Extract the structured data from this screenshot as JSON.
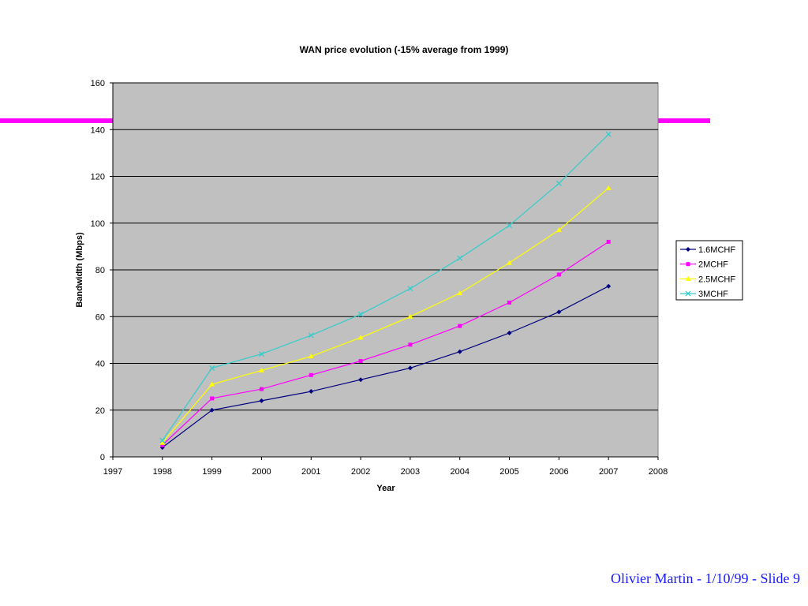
{
  "slide": {
    "footer": "Olivier Martin - 1/10/99 - Slide 9",
    "rule_color": "#ff00ff"
  },
  "chart_data": {
    "type": "line",
    "title": "WAN price evolution (-15% average from 1999)",
    "xlabel": "Year",
    "ylabel": "Bandwidth (Mbps)",
    "xlim": [
      1997,
      2008
    ],
    "ylim": [
      0,
      160
    ],
    "x_ticks": [
      1997,
      1998,
      1999,
      2000,
      2001,
      2002,
      2003,
      2004,
      2005,
      2006,
      2007,
      2008
    ],
    "y_ticks": [
      0,
      20,
      40,
      60,
      80,
      100,
      120,
      140,
      160
    ],
    "grid": "horizontal",
    "plot_background": "#c0c0c0",
    "legend_position": "right",
    "x": [
      1998,
      1999,
      2000,
      2001,
      2002,
      2003,
      2004,
      2005,
      2006,
      2007
    ],
    "series": [
      {
        "name": "1.6MCHF",
        "color": "#000080",
        "marker": "diamond",
        "values": [
          4,
          20,
          24,
          28,
          33,
          38,
          45,
          53,
          62,
          73
        ]
      },
      {
        "name": "2MCHF",
        "color": "#ff00ff",
        "marker": "square",
        "values": [
          5,
          25,
          29,
          35,
          41,
          48,
          56,
          66,
          78,
          92
        ]
      },
      {
        "name": "2.5MCHF",
        "color": "#ffff00",
        "marker": "triangle",
        "values": [
          6,
          31,
          37,
          43,
          51,
          60,
          70,
          83,
          97,
          115
        ]
      },
      {
        "name": "3MCHF",
        "color": "#33cccc",
        "marker": "x",
        "values": [
          7,
          38,
          44,
          52,
          61,
          72,
          85,
          99,
          117,
          138
        ]
      }
    ]
  }
}
